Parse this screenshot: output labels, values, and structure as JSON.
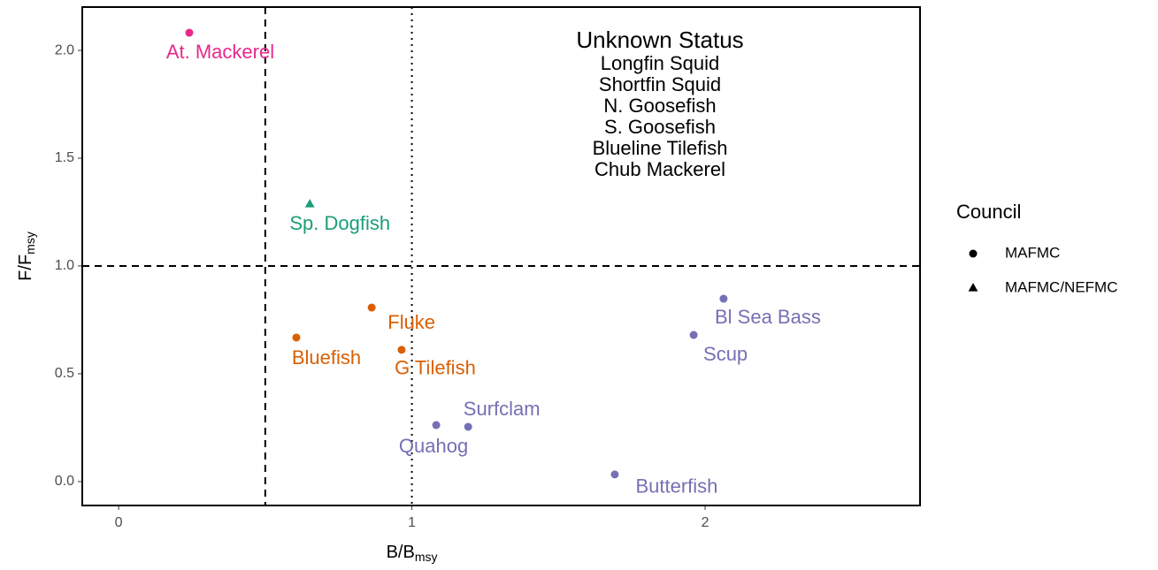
{
  "chart_data": {
    "type": "scatter",
    "xlabel": {
      "main": "B/B",
      "sub": "msy"
    },
    "ylabel": {
      "main": "F/F",
      "sub": "msy"
    },
    "xlim": [
      -0.124,
      2.733
    ],
    "ylim": [
      -0.111,
      2.201
    ],
    "xticks": [
      0,
      1,
      2
    ],
    "yticks": [
      {
        "value": 0,
        "label": "0.0"
      },
      {
        "value": 0.5,
        "label": "0.5"
      },
      {
        "value": 1,
        "label": "1.0"
      },
      {
        "value": 1.5,
        "label": "1.5"
      },
      {
        "value": 2,
        "label": "2.0"
      }
    ],
    "hlines": [
      {
        "value": 1,
        "style": "dashed"
      }
    ],
    "vlines": [
      {
        "value": 0.5,
        "style": "dashed"
      },
      {
        "value": 1,
        "style": "dotted"
      }
    ],
    "legend": {
      "title": "Council",
      "position": "right",
      "entries": [
        {
          "name": "MAFMC",
          "shape": "circle"
        },
        {
          "name": "MAFMC/NEFMC",
          "shape": "triangle"
        }
      ]
    },
    "annotation": {
      "title": "Unknown Status",
      "lines": [
        "Longfin Squid",
        "Shortfin Squid",
        "N. Goosefish",
        "S. Goosefish",
        "Blueline Tilefish",
        "Chub Mackerel"
      ]
    },
    "points": [
      {
        "label": "At. Mackerel",
        "x": 0.241,
        "y": 2.082,
        "council": 0,
        "color": "#e7298a"
      },
      {
        "label": "Sp. Dogfish",
        "x": 0.652,
        "y": 1.287,
        "council": 1,
        "color": "#1b9e77"
      },
      {
        "label": "Fluke",
        "x": 0.863,
        "y": 0.807,
        "council": 0,
        "color": "#d95f02"
      },
      {
        "label": "Bluefish",
        "x": 0.606,
        "y": 0.668,
        "council": 0,
        "color": "#d95f02"
      },
      {
        "label": "G Tilefish",
        "x": 0.965,
        "y": 0.611,
        "council": 0,
        "color": "#d95f02"
      },
      {
        "label": "Surfclam",
        "x": 1.192,
        "y": 0.254,
        "council": 0,
        "color": "#7570b3"
      },
      {
        "label": "Quahog",
        "x": 1.083,
        "y": 0.262,
        "council": 0,
        "color": "#7570b3"
      },
      {
        "label": "Butterfish",
        "x": 1.692,
        "y": 0.033,
        "council": 0,
        "color": "#7570b3"
      },
      {
        "label": "Scup",
        "x": 1.961,
        "y": 0.68,
        "council": 0,
        "color": "#7570b3"
      },
      {
        "label": "Bl Sea Bass",
        "x": 2.063,
        "y": 0.848,
        "council": 0,
        "color": "#7570b3"
      }
    ]
  }
}
